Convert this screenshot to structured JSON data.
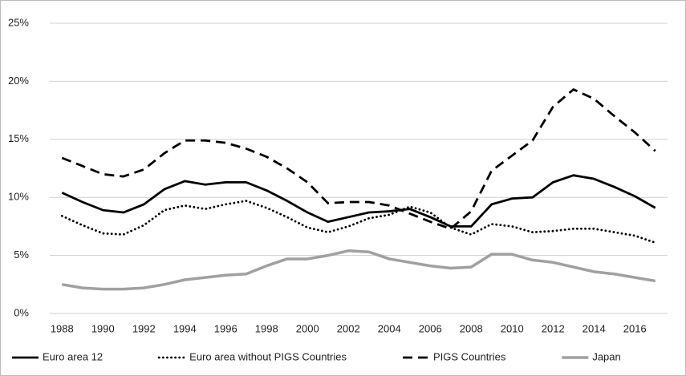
{
  "chart_data": {
    "type": "line",
    "x": [
      1988,
      1989,
      1990,
      1991,
      1992,
      1993,
      1994,
      1995,
      1996,
      1997,
      1998,
      1999,
      2000,
      2001,
      2002,
      2003,
      2004,
      2005,
      2006,
      2007,
      2008,
      2009,
      2010,
      2011,
      2012,
      2013,
      2014,
      2015,
      2016,
      2017
    ],
    "xlim": [
      1987.4,
      2017.6
    ],
    "xticks": [
      1988,
      1990,
      1992,
      1994,
      1996,
      1998,
      2000,
      2002,
      2004,
      2006,
      2008,
      2010,
      2012,
      2014,
      2016
    ],
    "ylim": [
      0,
      25
    ],
    "yticks": [
      {
        "value": 0,
        "label": "0%"
      },
      {
        "value": 5,
        "label": "5%"
      },
      {
        "value": 10,
        "label": "10%"
      },
      {
        "value": 15,
        "label": "15%"
      },
      {
        "value": 20,
        "label": "20%"
      },
      {
        "value": 25,
        "label": "25%"
      }
    ],
    "grid": true,
    "legend": "bottom",
    "series": [
      {
        "name": "Euro area 12",
        "color": "#000000",
        "dash": "solid",
        "values": [
          10.4,
          9.6,
          8.9,
          8.7,
          9.4,
          10.7,
          11.4,
          11.1,
          11.3,
          11.3,
          10.6,
          9.7,
          8.7,
          7.9,
          8.3,
          8.7,
          8.8,
          9.0,
          8.3,
          7.5,
          7.5,
          9.4,
          9.9,
          10.0,
          11.3,
          11.9,
          11.6,
          10.9,
          10.1,
          9.1
        ]
      },
      {
        "name": "Euro area without PIGS Countries",
        "color": "#000000",
        "dash": "dotted",
        "values": [
          8.4,
          7.6,
          6.9,
          6.8,
          7.6,
          8.9,
          9.3,
          9.0,
          9.4,
          9.7,
          9.1,
          8.3,
          7.4,
          7.0,
          7.5,
          8.2,
          8.5,
          9.2,
          8.7,
          7.4,
          6.8,
          7.7,
          7.5,
          7.0,
          7.1,
          7.3,
          7.3,
          7.0,
          6.7,
          6.1
        ]
      },
      {
        "name": "PIGS Countries",
        "color": "#000000",
        "dash": "dashed",
        "values": [
          13.4,
          12.7,
          12.0,
          11.8,
          12.4,
          13.8,
          14.9,
          14.9,
          14.7,
          14.2,
          13.5,
          12.5,
          11.3,
          9.5,
          9.6,
          9.6,
          9.3,
          8.6,
          7.9,
          7.3,
          8.8,
          12.3,
          13.6,
          14.9,
          17.8,
          19.3,
          18.5,
          17.0,
          15.6,
          14.0
        ]
      },
      {
        "name": "Japan",
        "color": "#a0a0a0",
        "dash": "solid",
        "values": [
          2.5,
          2.2,
          2.1,
          2.1,
          2.2,
          2.5,
          2.9,
          3.1,
          3.3,
          3.4,
          4.1,
          4.7,
          4.7,
          5.0,
          5.4,
          5.3,
          4.7,
          4.4,
          4.1,
          3.9,
          4.0,
          5.1,
          5.1,
          4.6,
          4.4,
          4.0,
          3.6,
          3.4,
          3.1,
          2.8
        ]
      }
    ]
  }
}
